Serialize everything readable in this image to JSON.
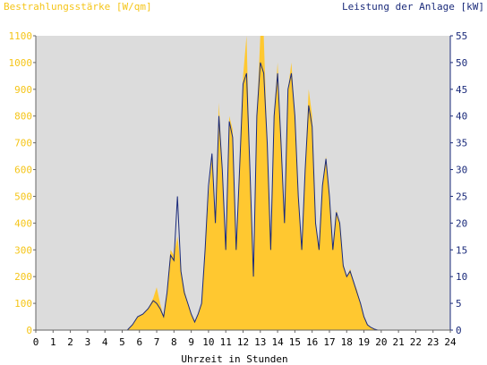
{
  "chart_data": {
    "type": "area",
    "title": "",
    "y_left_label": "Bestrahlungsstärke [W/qm]",
    "y_right_label": "Leistung der Anlage [kW]",
    "xlabel": "Uhrzeit in Stunden",
    "xlim": [
      0,
      24
    ],
    "ylim_left": [
      0,
      1100
    ],
    "ylim_right": [
      0,
      55
    ],
    "x_ticks": [
      "0",
      "1",
      "2",
      "3",
      "4",
      "5",
      "6",
      "7",
      "8",
      "9",
      "10",
      "11",
      "12",
      "13",
      "14",
      "15",
      "16",
      "17",
      "18",
      "19",
      "20",
      "21",
      "22",
      "23",
      "24"
    ],
    "y_left_ticks": [
      "0",
      "100",
      "200",
      "300",
      "400",
      "500",
      "600",
      "700",
      "800",
      "900",
      "1000",
      "1100"
    ],
    "y_right_ticks": [
      "0",
      "5",
      "10",
      "15",
      "20",
      "25",
      "30",
      "35",
      "40",
      "45",
      "50",
      "55"
    ],
    "colors": {
      "irradiance": "#ffc830",
      "power": "#1a2a7a",
      "plot_bg": "#dcdcdc"
    },
    "series": [
      {
        "name": "Bestrahlungsstärke [W/qm]",
        "axis": "left",
        "x": [
          0,
          5.3,
          5.6,
          5.9,
          6.2,
          6.5,
          6.8,
          7.0,
          7.2,
          7.4,
          7.6,
          7.8,
          8.0,
          8.2,
          8.4,
          8.6,
          8.8,
          9.0,
          9.2,
          9.4,
          9.6,
          9.8,
          10.0,
          10.2,
          10.4,
          10.6,
          10.8,
          11.0,
          11.2,
          11.4,
          11.6,
          11.8,
          12.0,
          12.2,
          12.4,
          12.6,
          12.8,
          13.0,
          13.2,
          13.4,
          13.6,
          13.8,
          14.0,
          14.2,
          14.4,
          14.6,
          14.8,
          15.0,
          15.2,
          15.4,
          15.6,
          15.8,
          16.0,
          16.2,
          16.4,
          16.6,
          16.8,
          17.0,
          17.2,
          17.4,
          17.6,
          17.8,
          18.0,
          18.2,
          18.4,
          18.6,
          18.8,
          19.0,
          19.2,
          19.4,
          19.6,
          19.8,
          20.0,
          24
        ],
        "values": [
          0,
          0,
          20,
          50,
          60,
          80,
          120,
          160,
          100,
          50,
          150,
          300,
          280,
          350,
          230,
          150,
          100,
          60,
          30,
          60,
          100,
          300,
          500,
          650,
          400,
          850,
          600,
          300,
          800,
          750,
          300,
          600,
          950,
          1100,
          600,
          200,
          800,
          1100,
          1100,
          700,
          300,
          800,
          1000,
          700,
          400,
          900,
          1000,
          800,
          500,
          300,
          600,
          900,
          800,
          400,
          300,
          550,
          650,
          500,
          300,
          450,
          400,
          250,
          200,
          230,
          180,
          150,
          100,
          50,
          20,
          10,
          5,
          0,
          0,
          0
        ]
      },
      {
        "name": "Leistung der Anlage [kW]",
        "axis": "right",
        "x": [
          0,
          5.3,
          5.6,
          5.9,
          6.2,
          6.5,
          6.8,
          7.0,
          7.2,
          7.4,
          7.6,
          7.8,
          8.0,
          8.2,
          8.4,
          8.6,
          8.8,
          9.0,
          9.2,
          9.4,
          9.6,
          9.8,
          10.0,
          10.2,
          10.4,
          10.6,
          10.8,
          11.0,
          11.2,
          11.4,
          11.6,
          11.8,
          12.0,
          12.2,
          12.4,
          12.6,
          12.8,
          13.0,
          13.2,
          13.4,
          13.6,
          13.8,
          14.0,
          14.2,
          14.4,
          14.6,
          14.8,
          15.0,
          15.2,
          15.4,
          15.6,
          15.8,
          16.0,
          16.2,
          16.4,
          16.6,
          16.8,
          17.0,
          17.2,
          17.4,
          17.6,
          17.8,
          18.0,
          18.2,
          18.4,
          18.6,
          18.8,
          19.0,
          19.2,
          19.4,
          19.6,
          19.8,
          20.0,
          24
        ],
        "values": [
          0,
          0,
          1,
          2.5,
          3,
          4,
          5.5,
          5,
          4,
          2.5,
          7,
          14,
          13,
          25,
          11,
          7,
          5,
          3,
          1.5,
          3,
          5,
          15,
          27,
          33,
          20,
          40,
          30,
          15,
          39,
          36,
          15,
          30,
          46,
          48,
          30,
          10,
          40,
          50,
          48,
          35,
          15,
          40,
          48,
          35,
          20,
          45,
          48,
          40,
          25,
          15,
          30,
          42,
          38,
          20,
          15,
          27,
          32,
          25,
          15,
          22,
          20,
          12,
          10,
          11,
          9,
          7,
          5,
          2.5,
          1,
          0.5,
          0.2,
          0,
          0,
          0
        ]
      }
    ]
  }
}
